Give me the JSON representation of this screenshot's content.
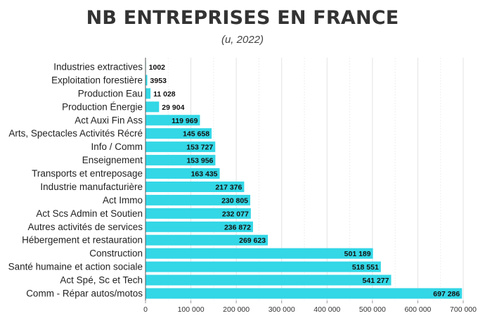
{
  "chart_data": {
    "type": "bar",
    "orientation": "horizontal",
    "title": "NB ENTREPRISES EN FRANCE",
    "subtitle": "(u, 2022)",
    "xlabel": "",
    "ylabel": "",
    "xlim": [
      0,
      700000
    ],
    "xticks": [
      0,
      100000,
      200000,
      300000,
      400000,
      500000,
      600000,
      700000
    ],
    "xtick_labels": [
      "0",
      "100 000",
      "200 000",
      "300 000",
      "400 000",
      "500 000",
      "600 000",
      "700 000"
    ],
    "bar_color": "#33d7e6",
    "grid": true,
    "categories": [
      "Industries extractives",
      "Exploitation forestière",
      "Production Eau",
      "Production Énergie",
      "Act Auxi Fin Ass",
      "Arts, Spectacles Activités Récré",
      "Info / Comm",
      "Enseignement",
      "Transports et entreposage",
      "Industrie manufacturière",
      "Act Immo",
      "Act Scs Admin et Soutien",
      "Autres activités de services",
      "Hébergement et restauration",
      "Construction",
      "Santé humaine et action sociale",
      "Act Spé, Sc et Tech",
      "Comm - Répar autos/motos"
    ],
    "values": [
      1002,
      3953,
      11028,
      29904,
      119969,
      145658,
      153727,
      153956,
      163435,
      217376,
      230805,
      232077,
      236872,
      269623,
      501189,
      518551,
      541277,
      697286
    ],
    "value_labels": [
      "1002",
      "3953",
      "11 028",
      "29 904",
      "119 969",
      "145 658",
      "153 727",
      "153 956",
      "163 435",
      "217 376",
      "230 805",
      "232 077",
      "236 872",
      "269 623",
      "501 189",
      "518 551",
      "541 277",
      "697 286"
    ]
  }
}
